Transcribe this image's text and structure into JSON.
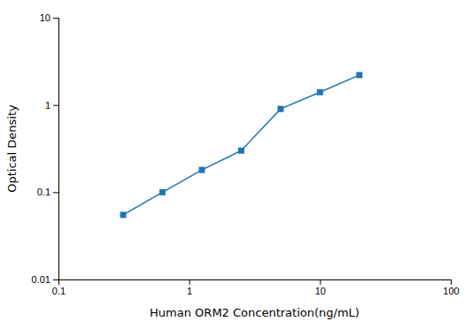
{
  "chart_data": {
    "type": "line",
    "x": [
      0.3125,
      0.625,
      1.25,
      2.5,
      5.0,
      10.0,
      20.0
    ],
    "values": [
      0.055,
      0.1,
      0.18,
      0.3,
      0.9,
      1.4,
      2.2
    ],
    "xlabel": "Human ORM2 Concentration(ng/mL)",
    "ylabel": "Optical Density",
    "xlim": [
      0.1,
      100
    ],
    "ylim": [
      0.01,
      10
    ],
    "xticks": [
      0.1,
      1,
      10,
      100
    ],
    "yticks": [
      0.01,
      0.1,
      1,
      10
    ],
    "log": true,
    "grid": false,
    "marker": "square",
    "line_style": "solid"
  }
}
